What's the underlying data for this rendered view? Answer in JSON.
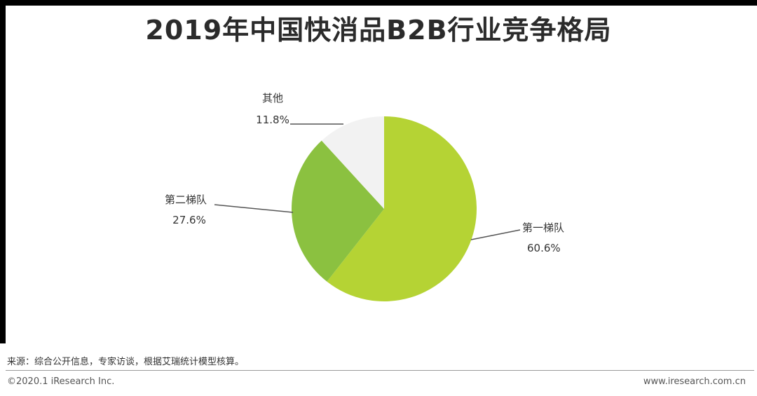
{
  "title": "2019年中国快消品B2B行业竞争格局",
  "chart_data": {
    "type": "pie",
    "start_angle_deg": 0,
    "direction": "clockwise",
    "slices": [
      {
        "label": "第一梯队",
        "value": 60.6,
        "display": "60.6%",
        "color": "#b5d334"
      },
      {
        "label": "第二梯队",
        "value": 27.6,
        "display": "27.6%",
        "color": "#8bc140"
      },
      {
        "label": "其他",
        "value": 11.8,
        "display": "11.8%",
        "color": "#f2f2f2"
      }
    ],
    "legend": "none"
  },
  "footer": {
    "source": "来源：综合公开信息，专家访谈，根据艾瑞统计模型核算。",
    "copyright": "©2020.1 iResearch Inc.",
    "website": "www.iresearch.com.cn"
  }
}
